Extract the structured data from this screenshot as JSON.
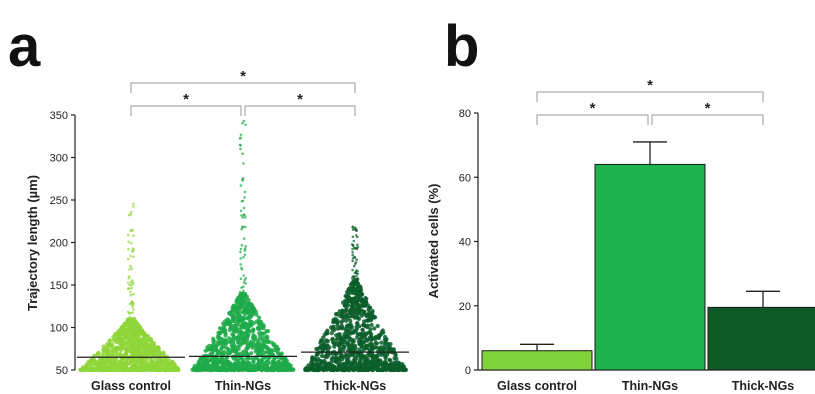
{
  "chart_data": [
    {
      "panel": "a",
      "type": "scatter",
      "ylabel": "Trajectory length (µm)",
      "ylim": [
        50,
        350
      ],
      "yticks": [
        50,
        100,
        150,
        200,
        250,
        300,
        350
      ],
      "categories": [
        "Glass control",
        "Thin-NGs",
        "Thick-NGs"
      ],
      "colors": [
        "#8fd63a",
        "#1faa4a",
        "#0b5e2a"
      ],
      "medians": [
        65,
        66,
        71
      ],
      "bulk_top": [
        110,
        140,
        155
      ],
      "max_values": [
        248,
        343,
        225
      ],
      "significance": [
        {
          "from": 0,
          "to": 2,
          "label": "*"
        },
        {
          "from": 0,
          "to": 1,
          "label": "*"
        },
        {
          "from": 1,
          "to": 2,
          "label": "*"
        }
      ]
    },
    {
      "panel": "b",
      "type": "bar",
      "ylabel": "Activated cells (%)",
      "ylim": [
        0,
        80
      ],
      "yticks": [
        0,
        20,
        40,
        60,
        80
      ],
      "categories": [
        "Glass control",
        "Thin-NGs",
        "Thick-NGs"
      ],
      "values": [
        6,
        64,
        19.5
      ],
      "errors": [
        2,
        7,
        5
      ],
      "colors": [
        "#7ed43a",
        "#1fb24c",
        "#0f5a26"
      ],
      "significance": [
        {
          "from": 0,
          "to": 2,
          "label": "*"
        },
        {
          "from": 0,
          "to": 1,
          "label": "*"
        },
        {
          "from": 1,
          "to": 2,
          "label": "*"
        }
      ]
    }
  ]
}
